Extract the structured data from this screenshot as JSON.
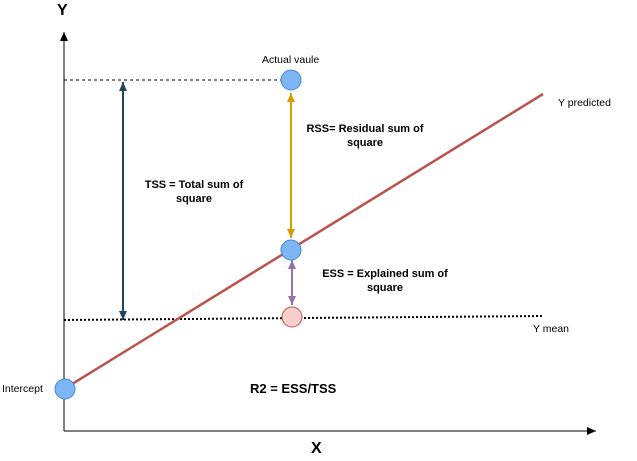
{
  "axes": {
    "x_label": "X",
    "y_label": "Y"
  },
  "labels": {
    "actual_value": "Actual vaule",
    "y_predicted": "Y predicted",
    "y_mean": "Y mean",
    "intercept": "Intercept",
    "rss_line1": "RSS= Residual sum of",
    "rss_line2": "square",
    "tss_line1": "TSS = Total sum of",
    "tss_line2": "square",
    "ess_line1": "ESS = Explained sum of",
    "ess_line2": "square",
    "r2_formula": "R2 = ESS/TSS"
  },
  "colors": {
    "regression_line": "#b85450",
    "rss_arrow": "#d79b00",
    "ess_arrow": "#9673a6",
    "tss_arrow": "#23445d",
    "point_blue_fill": "#7eb6f5",
    "point_blue_stroke": "#4a86c5",
    "point_mean_fill": "#f8cecc",
    "point_mean_stroke": "#b85450"
  }
}
